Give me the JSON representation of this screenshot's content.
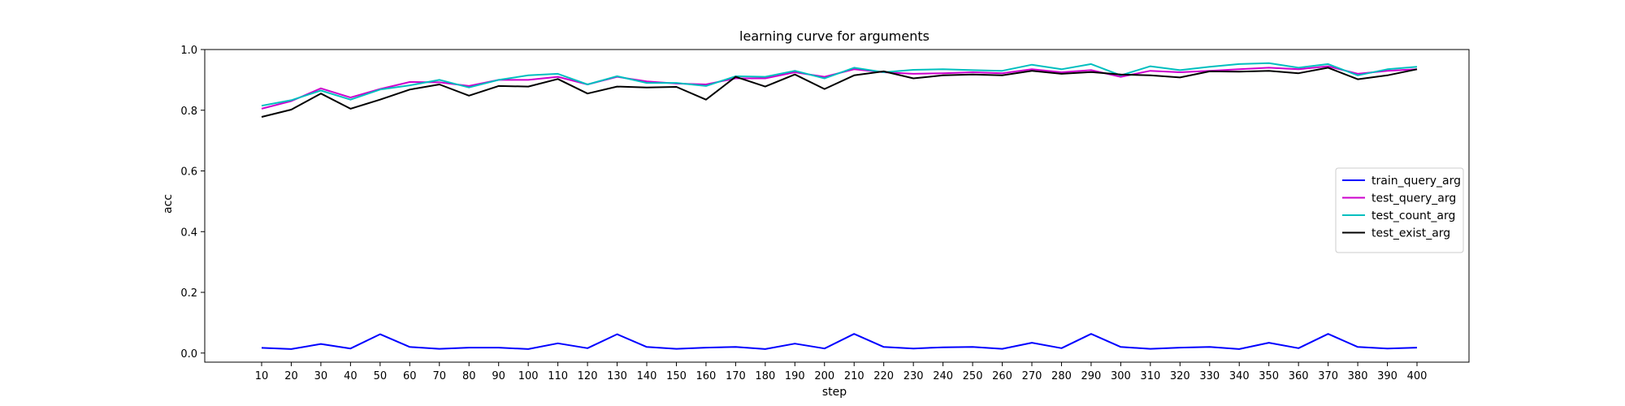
{
  "chart_data": {
    "type": "line",
    "title": "learning curve for arguments",
    "xlabel": "step",
    "ylabel": "acc",
    "ylim": [
      -0.03,
      1.0
    ],
    "y_ticks": [
      "0.0",
      "0.2",
      "0.4",
      "0.6",
      "0.8",
      "1.0"
    ],
    "x": [
      10,
      20,
      30,
      40,
      50,
      60,
      70,
      80,
      90,
      100,
      110,
      120,
      130,
      140,
      150,
      160,
      170,
      180,
      190,
      200,
      210,
      220,
      230,
      240,
      250,
      260,
      270,
      280,
      290,
      300,
      310,
      320,
      330,
      340,
      350,
      360,
      370,
      380,
      390,
      400
    ],
    "grid": false,
    "legend_position": "center-right",
    "series": [
      {
        "name": "train_query_arg",
        "color": "#0000ff",
        "values": [
          0.017,
          0.013,
          0.03,
          0.015,
          0.062,
          0.02,
          0.014,
          0.018,
          0.018,
          0.013,
          0.032,
          0.016,
          0.062,
          0.02,
          0.014,
          0.018,
          0.02,
          0.013,
          0.031,
          0.015,
          0.063,
          0.02,
          0.015,
          0.019,
          0.02,
          0.014,
          0.034,
          0.016,
          0.063,
          0.02,
          0.014,
          0.018,
          0.02,
          0.013,
          0.034,
          0.016,
          0.063,
          0.02,
          0.015,
          0.018
        ]
      },
      {
        "name": "test_query_arg",
        "color": "#cc00cc",
        "values": [
          0.805,
          0.83,
          0.872,
          0.842,
          0.87,
          0.893,
          0.892,
          0.88,
          0.9,
          0.9,
          0.91,
          0.885,
          0.91,
          0.895,
          0.888,
          0.885,
          0.905,
          0.905,
          0.925,
          0.91,
          0.935,
          0.925,
          0.92,
          0.922,
          0.925,
          0.922,
          0.935,
          0.925,
          0.932,
          0.91,
          0.93,
          0.925,
          0.93,
          0.935,
          0.94,
          0.935,
          0.945,
          0.92,
          0.93,
          0.935
        ]
      },
      {
        "name": "test_count_arg",
        "color": "#00bfbf",
        "values": [
          0.815,
          0.833,
          0.865,
          0.835,
          0.868,
          0.882,
          0.9,
          0.875,
          0.9,
          0.915,
          0.92,
          0.885,
          0.912,
          0.89,
          0.89,
          0.88,
          0.912,
          0.91,
          0.93,
          0.905,
          0.94,
          0.925,
          0.933,
          0.935,
          0.932,
          0.93,
          0.95,
          0.935,
          0.952,
          0.915,
          0.945,
          0.932,
          0.943,
          0.952,
          0.955,
          0.94,
          0.952,
          0.915,
          0.935,
          0.943
        ]
      },
      {
        "name": "test_exist_arg",
        "color": "#000000",
        "values": [
          0.778,
          0.802,
          0.855,
          0.805,
          0.835,
          0.868,
          0.885,
          0.848,
          0.88,
          0.878,
          0.903,
          0.855,
          0.878,
          0.875,
          0.877,
          0.835,
          0.91,
          0.878,
          0.918,
          0.87,
          0.915,
          0.928,
          0.905,
          0.915,
          0.918,
          0.915,
          0.93,
          0.92,
          0.926,
          0.918,
          0.915,
          0.908,
          0.928,
          0.927,
          0.93,
          0.922,
          0.94,
          0.902,
          0.915,
          0.935
        ]
      }
    ]
  }
}
